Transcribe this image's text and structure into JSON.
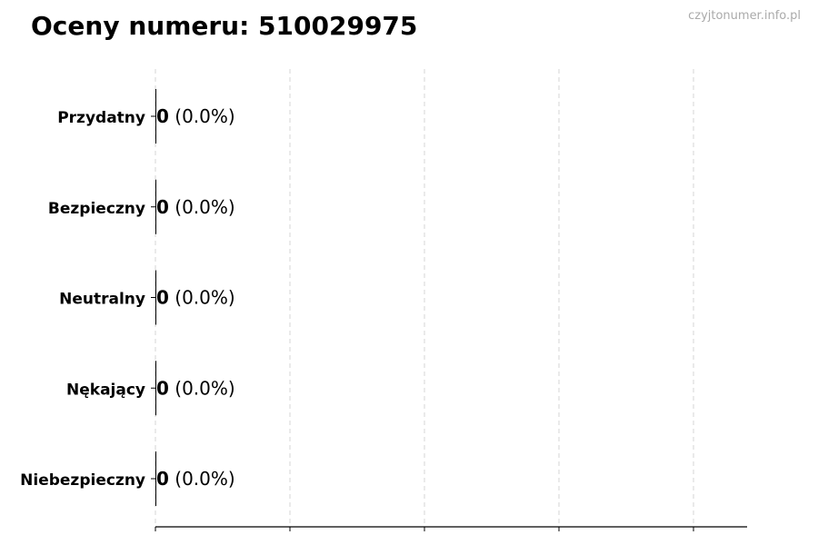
{
  "title": "Oceny numeru: 510029975",
  "watermark": "czyjtonumer.info.pl",
  "chart_data": {
    "type": "bar",
    "orientation": "horizontal",
    "title": "Oceny numeru: 510029975",
    "categories": [
      "Przydatny",
      "Bezpieczny",
      "Neutralny",
      "Nękający",
      "Niebezpieczny"
    ],
    "values": [
      0,
      0,
      0,
      0,
      0
    ],
    "data_labels": [
      "0 (0.0%)",
      "0 (0.0%)",
      "0 (0.0%)",
      "0 (0.0%)",
      "0 (0.0%)"
    ],
    "percentages": [
      "0.0%",
      "0.0%",
      "0.0%",
      "0.0%",
      "0.0%"
    ],
    "xlabel": "",
    "ylabel": "",
    "x_tick_labels_shown": false,
    "grid": "x dashed",
    "bar_color": "#000000"
  }
}
